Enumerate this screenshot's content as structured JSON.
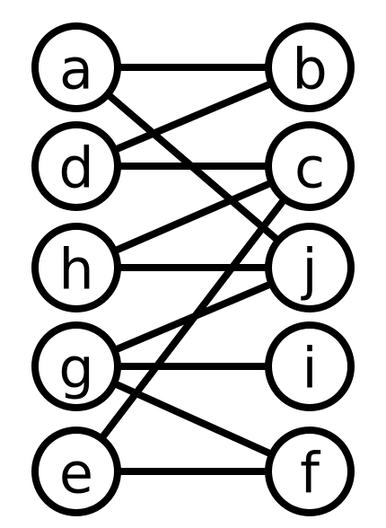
{
  "graph": {
    "stroke_color": "#000000",
    "fill_color": "#ffffff",
    "nodes": [
      {
        "id": "a",
        "label": "a"
      },
      {
        "id": "d",
        "label": "d"
      },
      {
        "id": "h",
        "label": "h"
      },
      {
        "id": "g",
        "label": "g"
      },
      {
        "id": "e",
        "label": "e"
      },
      {
        "id": "b",
        "label": "b"
      },
      {
        "id": "c",
        "label": "c"
      },
      {
        "id": "j",
        "label": "j"
      },
      {
        "id": "i",
        "label": "i"
      },
      {
        "id": "f",
        "label": "f"
      }
    ],
    "edges": [
      {
        "from": "a",
        "to": "b"
      },
      {
        "from": "a",
        "to": "j"
      },
      {
        "from": "d",
        "to": "b"
      },
      {
        "from": "d",
        "to": "c"
      },
      {
        "from": "h",
        "to": "c"
      },
      {
        "from": "h",
        "to": "j"
      },
      {
        "from": "g",
        "to": "j"
      },
      {
        "from": "g",
        "to": "i"
      },
      {
        "from": "g",
        "to": "f"
      },
      {
        "from": "e",
        "to": "c"
      },
      {
        "from": "e",
        "to": "f"
      }
    ]
  }
}
